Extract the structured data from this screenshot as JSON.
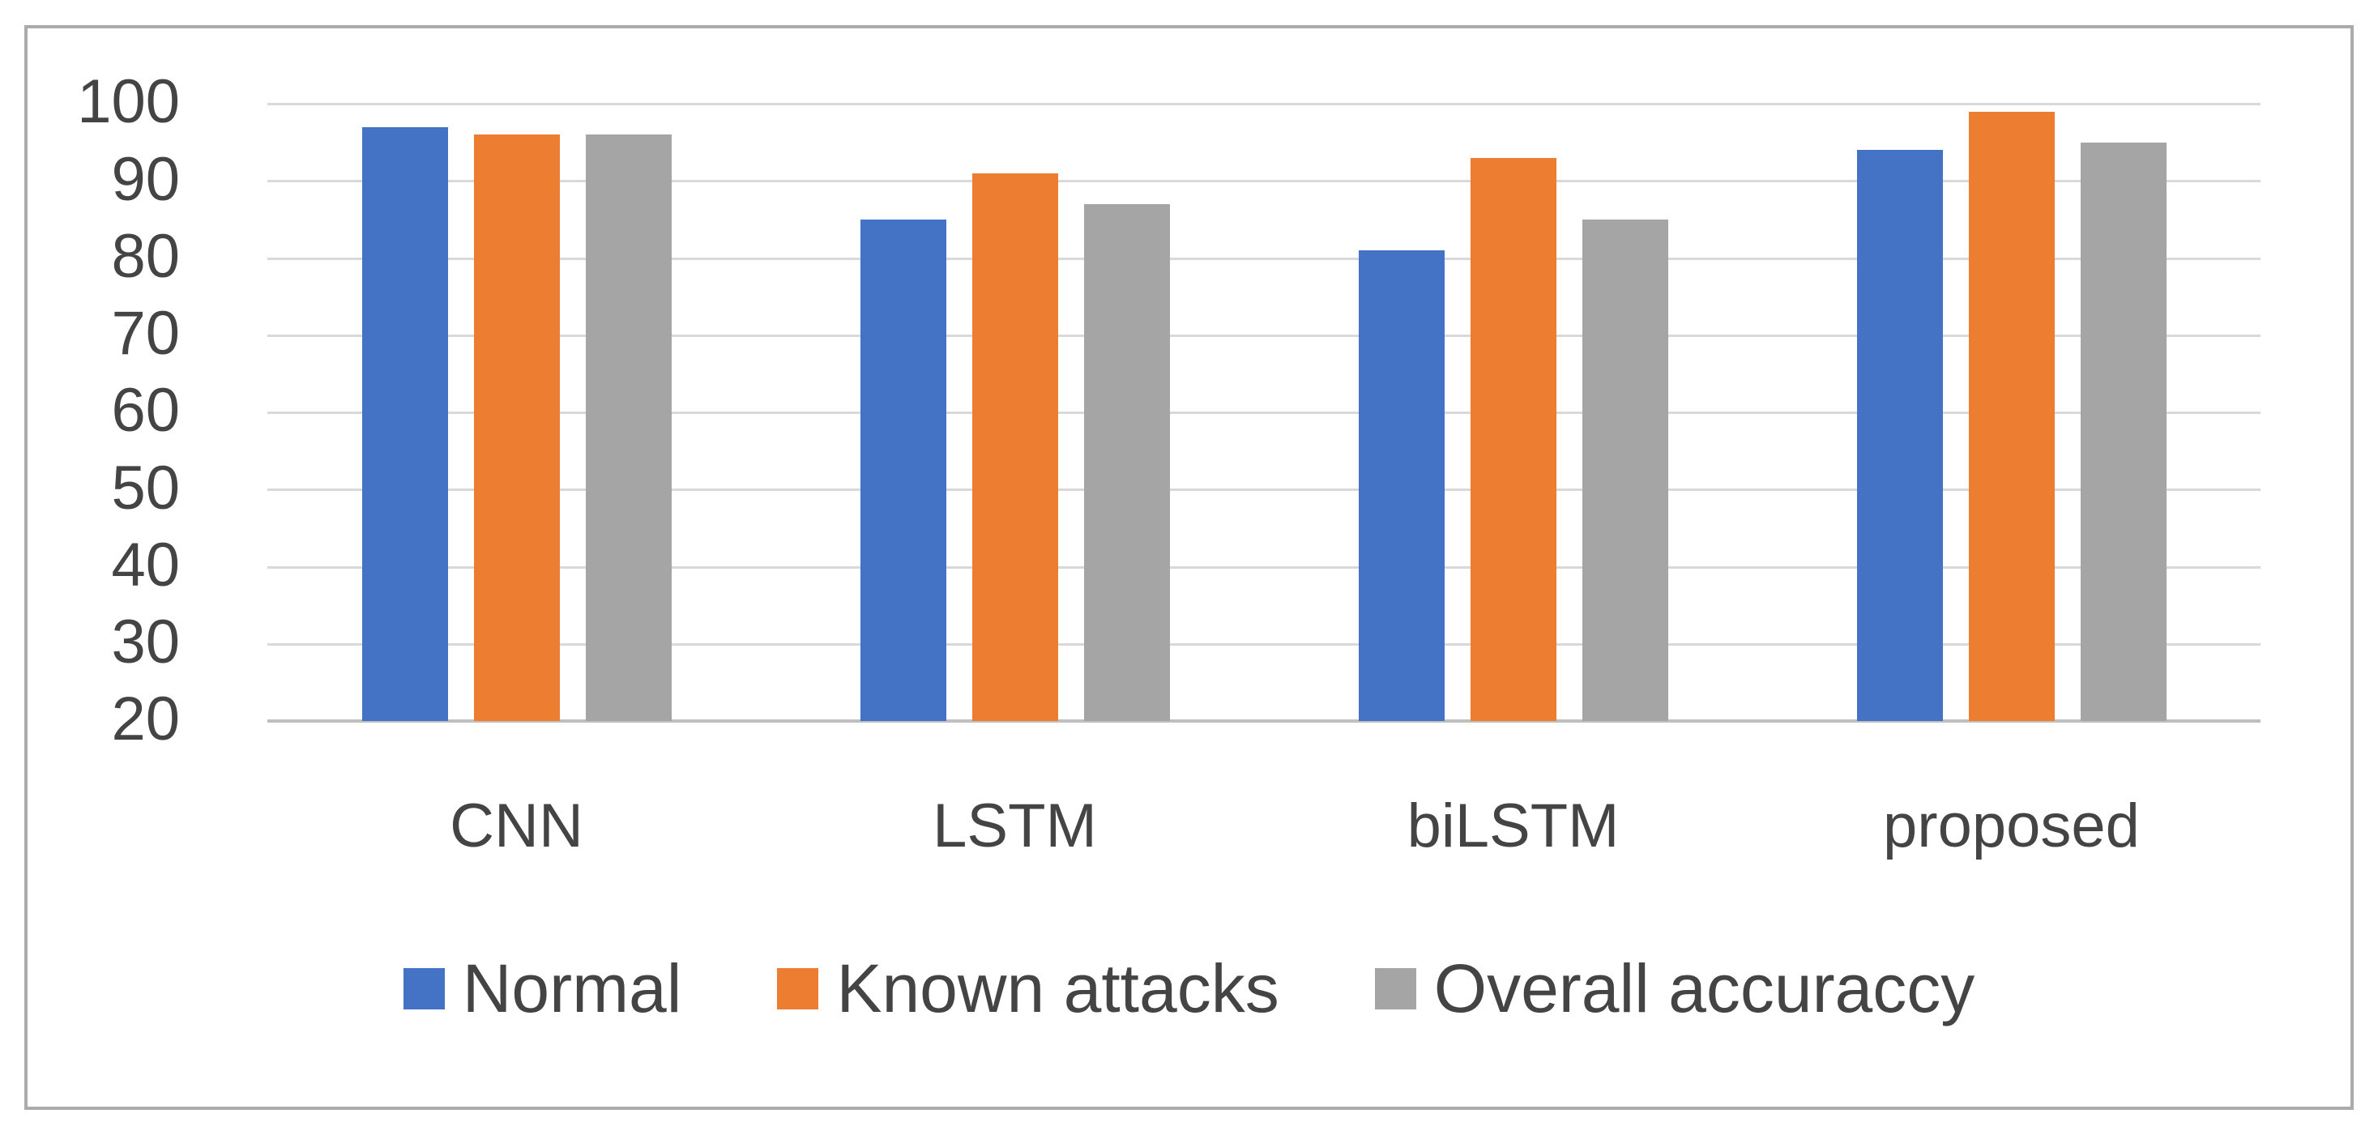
{
  "chart_data": {
    "type": "bar",
    "title": "",
    "categories": [
      "CNN",
      "LSTM",
      "biLSTM",
      "proposed"
    ],
    "series": [
      {
        "name": "Normal",
        "color": "#4472C4",
        "values": [
          97,
          85,
          81,
          94
        ]
      },
      {
        "name": "Known attacks",
        "color": "#ED7D31",
        "values": [
          96,
          91,
          93,
          99
        ]
      },
      {
        "name": "Overall accuraccy",
        "color": "#A5A5A5",
        "values": [
          96,
          87,
          85,
          95
        ]
      }
    ],
    "y_axis": {
      "min": 20,
      "max": 100,
      "step": 10,
      "tick_labels": [
        "100",
        "90",
        "80",
        "70",
        "60",
        "50",
        "40",
        "30",
        "20"
      ]
    },
    "x_axis_labels": [
      "CNN",
      "LSTM",
      "biLSTM",
      "proposed"
    ],
    "legend": {
      "position": "bottom",
      "items": [
        "Normal",
        "Known attacks",
        "Overall accuraccy"
      ]
    },
    "grid": true,
    "ylim": [
      20,
      100
    ],
    "colors": {
      "gridline": "#D9D9D9",
      "axis_line": "#BFBFBF",
      "label": "#444444",
      "frame_border": "#ABABAB",
      "background": "#FFFFFF"
    }
  }
}
